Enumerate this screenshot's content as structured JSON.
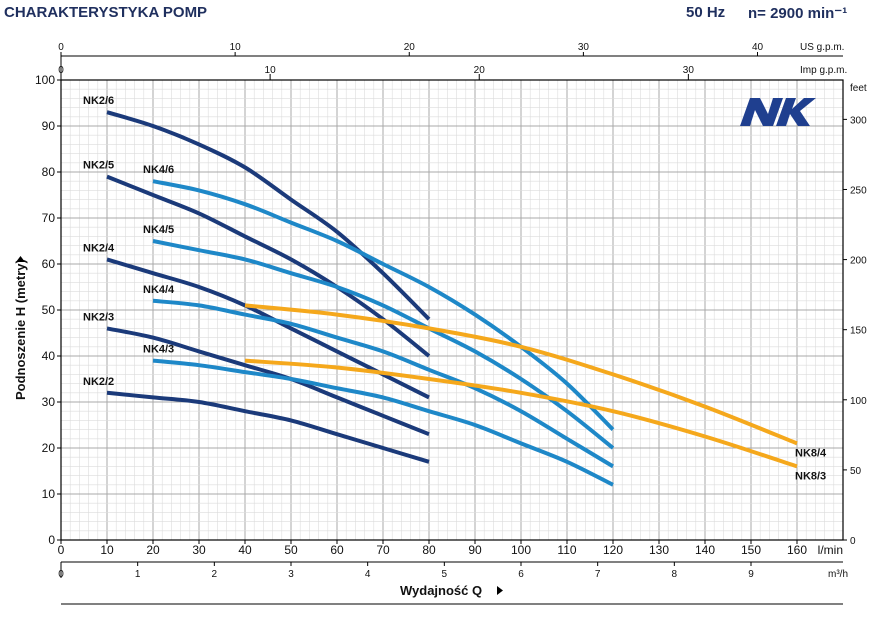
{
  "header": {
    "title": "CHARAKTERYSTYKA POMP",
    "frequency": "50 Hz",
    "speed": "n= 2900 min⁻¹"
  },
  "brand": {
    "logo_text": "NK",
    "color": "#1f3f8f"
  },
  "colors": {
    "nk2": "#1b3a7a",
    "nk4": "#1e88c8",
    "nk8": "#f5a81c",
    "grid": "#c8c8c8",
    "axis": "#000000"
  },
  "chart_data": {
    "type": "line",
    "grid": true,
    "xlabel": "Wydajność Q",
    "ylabel": "Podnoszenie H (metry)",
    "x_unit": "l/min",
    "xlim": [
      0,
      170
    ],
    "ylim": [
      0,
      100
    ],
    "x_ticks": [
      0,
      10,
      20,
      30,
      40,
      50,
      60,
      70,
      80,
      90,
      100,
      110,
      120,
      130,
      140,
      150,
      160
    ],
    "y_ticks": [
      0,
      10,
      20,
      30,
      40,
      50,
      60,
      70,
      80,
      90,
      100
    ],
    "secondary_axes": {
      "right": {
        "label": "feet",
        "ticks": [
          0,
          50,
          100,
          150,
          200,
          250,
          300
        ]
      },
      "bottom": {
        "label": "m³/h",
        "ticks": [
          0,
          1,
          2,
          3,
          4,
          5,
          6,
          7,
          8,
          9
        ]
      },
      "top_us": {
        "label": "US g.p.m.",
        "ticks": [
          0,
          10,
          20,
          30,
          40
        ]
      },
      "top_imp": {
        "label": "Imp g.p.m.",
        "ticks": [
          0,
          10,
          20,
          30
        ]
      }
    },
    "series": [
      {
        "name": "NK2/6",
        "group": "nk2",
        "x": [
          10,
          20,
          30,
          40,
          50,
          60,
          70,
          80
        ],
        "y": [
          93,
          90,
          86,
          81,
          74,
          67,
          58,
          48
        ]
      },
      {
        "name": "NK2/5",
        "group": "nk2",
        "x": [
          10,
          20,
          30,
          40,
          50,
          60,
          70,
          80
        ],
        "y": [
          79,
          75,
          71,
          66,
          61,
          55,
          48,
          40
        ]
      },
      {
        "name": "NK2/4",
        "group": "nk2",
        "x": [
          10,
          20,
          30,
          40,
          50,
          60,
          70,
          80
        ],
        "y": [
          61,
          58,
          55,
          51,
          46,
          41,
          36,
          31
        ]
      },
      {
        "name": "NK2/3",
        "group": "nk2",
        "x": [
          10,
          20,
          30,
          40,
          50,
          60,
          70,
          80
        ],
        "y": [
          46,
          44,
          41,
          38,
          35,
          31,
          27,
          23
        ]
      },
      {
        "name": "NK2/2",
        "group": "nk2",
        "x": [
          10,
          20,
          30,
          40,
          50,
          60,
          70,
          80
        ],
        "y": [
          32,
          31,
          30,
          28,
          26,
          23,
          20,
          17
        ]
      },
      {
        "name": "NK4/6",
        "group": "nk4",
        "x": [
          20,
          30,
          40,
          50,
          60,
          70,
          80,
          90,
          100,
          110,
          120
        ],
        "y": [
          78,
          76,
          73,
          69,
          65,
          60,
          55,
          49,
          42,
          34,
          24
        ]
      },
      {
        "name": "NK4/5",
        "group": "nk4",
        "x": [
          20,
          30,
          40,
          50,
          60,
          70,
          80,
          90,
          100,
          110,
          120
        ],
        "y": [
          65,
          63,
          61,
          58,
          55,
          51,
          46,
          41,
          35,
          28,
          20
        ]
      },
      {
        "name": "NK4/4",
        "group": "nk4",
        "x": [
          20,
          30,
          40,
          50,
          60,
          70,
          80,
          90,
          100,
          110,
          120
        ],
        "y": [
          52,
          51,
          49,
          47,
          44,
          41,
          37,
          33,
          28,
          22,
          16
        ]
      },
      {
        "name": "NK4/3",
        "group": "nk4",
        "x": [
          20,
          30,
          40,
          50,
          60,
          70,
          80,
          90,
          100,
          110,
          120
        ],
        "y": [
          39,
          38,
          36.5,
          35,
          33,
          31,
          28,
          25,
          21,
          17,
          12
        ]
      },
      {
        "name": "NK8/4",
        "group": "nk8",
        "x": [
          40,
          60,
          80,
          100,
          120,
          140,
          160
        ],
        "y": [
          51,
          49,
          46,
          42,
          36,
          29,
          21
        ]
      },
      {
        "name": "NK8/3",
        "group": "nk8",
        "x": [
          40,
          60,
          80,
          100,
          120,
          140,
          160
        ],
        "y": [
          39,
          37.5,
          35,
          32,
          28,
          22.5,
          16
        ]
      }
    ]
  }
}
